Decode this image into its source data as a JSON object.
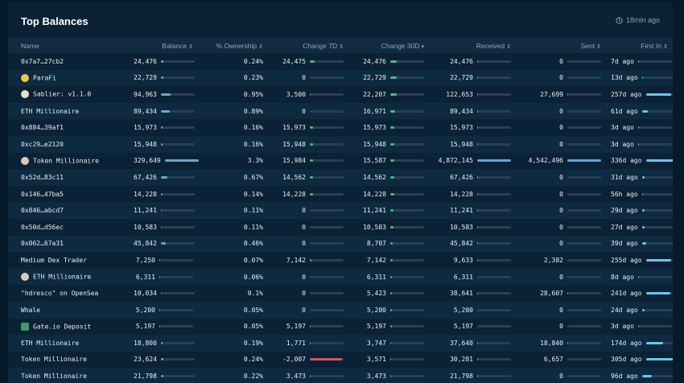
{
  "header": {
    "title": "Top Balances",
    "updated": "18min ago"
  },
  "columns": [
    {
      "key": "name",
      "label": "Name",
      "sort": ""
    },
    {
      "key": "balance",
      "label": "Balance",
      "sort": "⇕"
    },
    {
      "key": "ownership",
      "label": "% Ownership",
      "sort": "⇕"
    },
    {
      "key": "change7d",
      "label": "Change 7D",
      "sort": "⇕"
    },
    {
      "key": "change30d",
      "label": "Change 30D",
      "sort": "▾"
    },
    {
      "key": "received",
      "label": "Received",
      "sort": "⇕"
    },
    {
      "key": "sent",
      "label": "Sent",
      "sort": "⇕"
    },
    {
      "key": "first_in",
      "label": "First In",
      "sort": "⇕"
    }
  ],
  "colors": {
    "balance": "#6aa6c9",
    "change_pos": "#3fbf7f",
    "change_neg": "#d9535f",
    "received": "#5aa8e0",
    "sent": "#5aa8e0",
    "first_in": "#6cc4ee"
  },
  "rows": [
    {
      "name": "0x7a7…27cb2",
      "icon": "",
      "balance": "24,476",
      "balance_frac": 0.074,
      "ownership": "0.24%",
      "change7d": "24,475",
      "c7_frac": 0.15,
      "c7_sign": "pos",
      "change30d": "24,476",
      "c30_frac": 0.2,
      "c30_sign": "pos",
      "received": "24,476",
      "recv_frac": 0.005,
      "sent": "0",
      "sent_frac": 0,
      "first_in": "7d ago",
      "first_frac": 0.02
    },
    {
      "name": "ParaFi",
      "icon": "parafi",
      "balance": "22,729",
      "balance_frac": 0.069,
      "ownership": "0.23%",
      "change7d": "0",
      "c7_frac": 0,
      "c7_sign": "pos",
      "change30d": "22,729",
      "c30_frac": 0.19,
      "c30_sign": "pos",
      "received": "22,729",
      "recv_frac": 0.005,
      "sent": "0",
      "sent_frac": 0,
      "first_in": "13d ago",
      "first_frac": 0.04
    },
    {
      "name": "Sablier: v1.1.0",
      "icon": "sablier",
      "balance": "94,963",
      "balance_frac": 0.29,
      "ownership": "0.95%",
      "change7d": "3,500",
      "c7_frac": 0.02,
      "c7_sign": "pos",
      "change30d": "22,207",
      "c30_frac": 0.18,
      "c30_sign": "pos",
      "received": "122,653",
      "recv_frac": 0.025,
      "sent": "27,699",
      "sent_frac": 0.006,
      "first_in": "257d ago",
      "first_frac": 0.76
    },
    {
      "name": "ETH Millionaire",
      "icon": "",
      "balance": "89,434",
      "balance_frac": 0.27,
      "ownership": "0.89%",
      "change7d": "0",
      "c7_frac": 0,
      "c7_sign": "pos",
      "change30d": "16,971",
      "c30_frac": 0.14,
      "c30_sign": "pos",
      "received": "89,434",
      "recv_frac": 0.018,
      "sent": "0",
      "sent_frac": 0,
      "first_in": "61d ago",
      "first_frac": 0.18
    },
    {
      "name": "0x884…39af1",
      "icon": "",
      "balance": "15,973",
      "balance_frac": 0.048,
      "ownership": "0.16%",
      "change7d": "15,973",
      "c7_frac": 0.1,
      "c7_sign": "pos",
      "change30d": "15,973",
      "c30_frac": 0.13,
      "c30_sign": "pos",
      "received": "15,973",
      "recv_frac": 0.003,
      "sent": "0",
      "sent_frac": 0,
      "first_in": "3d ago",
      "first_frac": 0.01
    },
    {
      "name": "0xc29…e2120",
      "icon": "",
      "balance": "15,948",
      "balance_frac": 0.048,
      "ownership": "0.16%",
      "change7d": "15,948",
      "c7_frac": 0.1,
      "c7_sign": "pos",
      "change30d": "15,948",
      "c30_frac": 0.13,
      "c30_sign": "pos",
      "received": "15,948",
      "recv_frac": 0.003,
      "sent": "0",
      "sent_frac": 0,
      "first_in": "3d ago",
      "first_frac": 0.01
    },
    {
      "name": "Token Millionaire",
      "icon": "token",
      "balance": "329,649",
      "balance_frac": 1.0,
      "ownership": "3.3%",
      "change7d": "15,984",
      "c7_frac": 0.1,
      "c7_sign": "pos",
      "change30d": "15,587",
      "c30_frac": 0.13,
      "c30_sign": "pos",
      "received": "4,872,145",
      "recv_frac": 1.0,
      "sent": "4,542,496",
      "sent_frac": 1.0,
      "first_in": "336d ago",
      "first_frac": 1.0
    },
    {
      "name": "0x52d…83c11",
      "icon": "",
      "balance": "67,426",
      "balance_frac": 0.2,
      "ownership": "0.67%",
      "change7d": "14,562",
      "c7_frac": 0.09,
      "c7_sign": "pos",
      "change30d": "14,562",
      "c30_frac": 0.12,
      "c30_sign": "pos",
      "received": "67,426",
      "recv_frac": 0.014,
      "sent": "0",
      "sent_frac": 0,
      "first_in": "31d ago",
      "first_frac": 0.09
    },
    {
      "name": "0x146…47ba5",
      "icon": "",
      "balance": "14,228",
      "balance_frac": 0.043,
      "ownership": "0.14%",
      "change7d": "14,228",
      "c7_frac": 0.09,
      "c7_sign": "pos",
      "change30d": "14,228",
      "c30_frac": 0.12,
      "c30_sign": "pos",
      "received": "14,228",
      "recv_frac": 0.003,
      "sent": "0",
      "sent_frac": 0,
      "first_in": "56h ago",
      "first_frac": 0.01
    },
    {
      "name": "0x846…abcd7",
      "icon": "",
      "balance": "11,241",
      "balance_frac": 0.034,
      "ownership": "0.11%",
      "change7d": "0",
      "c7_frac": 0,
      "c7_sign": "pos",
      "change30d": "11,241",
      "c30_frac": 0.09,
      "c30_sign": "pos",
      "received": "11,241",
      "recv_frac": 0.002,
      "sent": "0",
      "sent_frac": 0,
      "first_in": "29d ago",
      "first_frac": 0.09
    },
    {
      "name": "0x50d…d56ec",
      "icon": "",
      "balance": "10,583",
      "balance_frac": 0.032,
      "ownership": "0.11%",
      "change7d": "0",
      "c7_frac": 0,
      "c7_sign": "pos",
      "change30d": "10,583",
      "c30_frac": 0.09,
      "c30_sign": "pos",
      "received": "10,583",
      "recv_frac": 0.002,
      "sent": "0",
      "sent_frac": 0,
      "first_in": "27d ago",
      "first_frac": 0.08
    },
    {
      "name": "0x062…67a31",
      "icon": "",
      "balance": "45,842",
      "balance_frac": 0.14,
      "ownership": "0.46%",
      "change7d": "0",
      "c7_frac": 0,
      "c7_sign": "pos",
      "change30d": "8,707",
      "c30_frac": 0.07,
      "c30_sign": "pos",
      "received": "45,842",
      "recv_frac": 0.009,
      "sent": "0",
      "sent_frac": 0,
      "first_in": "39d ago",
      "first_frac": 0.12
    },
    {
      "name": "Medium Dex Trader",
      "icon": "",
      "balance": "7,250",
      "balance_frac": 0.022,
      "ownership": "0.07%",
      "change7d": "7,142",
      "c7_frac": 0.05,
      "c7_sign": "pos",
      "change30d": "7,142",
      "c30_frac": 0.06,
      "c30_sign": "pos",
      "received": "9,633",
      "recv_frac": 0.002,
      "sent": "2,382",
      "sent_frac": 0.001,
      "first_in": "255d ago",
      "first_frac": 0.76
    },
    {
      "name": "ETH Millionaire",
      "icon": "token",
      "balance": "6,311",
      "balance_frac": 0.019,
      "ownership": "0.06%",
      "change7d": "0",
      "c7_frac": 0,
      "c7_sign": "pos",
      "change30d": "6,311",
      "c30_frac": 0.05,
      "c30_sign": "pos",
      "received": "6,311",
      "recv_frac": 0.001,
      "sent": "0",
      "sent_frac": 0,
      "first_in": "8d ago",
      "first_frac": 0.02
    },
    {
      "name": "\"hdresco\" on OpenSea",
      "icon": "",
      "balance": "10,034",
      "balance_frac": 0.03,
      "ownership": "0.1%",
      "change7d": "0",
      "c7_frac": 0,
      "c7_sign": "pos",
      "change30d": "5,423",
      "c30_frac": 0.05,
      "c30_sign": "pos",
      "received": "38,641",
      "recv_frac": 0.008,
      "sent": "28,607",
      "sent_frac": 0.006,
      "first_in": "241d ago",
      "first_frac": 0.72
    },
    {
      "name": "Whale",
      "icon": "",
      "balance": "5,200",
      "balance_frac": 0.016,
      "ownership": "0.05%",
      "change7d": "0",
      "c7_frac": 0,
      "c7_sign": "pos",
      "change30d": "5,200",
      "c30_frac": 0.04,
      "c30_sign": "pos",
      "received": "5,200",
      "recv_frac": 0.001,
      "sent": "0",
      "sent_frac": 0,
      "first_in": "24d ago",
      "first_frac": 0.07
    },
    {
      "name": "Gate.io Deposit",
      "icon": "gate",
      "balance": "5,197",
      "balance_frac": 0.016,
      "ownership": "0.05%",
      "change7d": "5,197",
      "c7_frac": 0.03,
      "c7_sign": "pos",
      "change30d": "5,197",
      "c30_frac": 0.04,
      "c30_sign": "pos",
      "received": "5,197",
      "recv_frac": 0.001,
      "sent": "0",
      "sent_frac": 0,
      "first_in": "3d ago",
      "first_frac": 0.01
    },
    {
      "name": "ETH Millionaire",
      "icon": "",
      "balance": "18,800",
      "balance_frac": 0.057,
      "ownership": "0.19%",
      "change7d": "1,771",
      "c7_frac": 0.01,
      "c7_sign": "pos",
      "change30d": "3,747",
      "c30_frac": 0.03,
      "c30_sign": "pos",
      "received": "37,640",
      "recv_frac": 0.008,
      "sent": "18,840",
      "sent_frac": 0.004,
      "first_in": "174d ago",
      "first_frac": 0.52
    },
    {
      "name": "Token Millionaire",
      "icon": "",
      "balance": "23,624",
      "balance_frac": 0.072,
      "ownership": "0.24%",
      "change7d": "-2,007",
      "c7_frac": 0.95,
      "c7_sign": "neg",
      "change30d": "3,571",
      "c30_frac": 0.03,
      "c30_sign": "pos",
      "received": "30,281",
      "recv_frac": 0.006,
      "sent": "6,657",
      "sent_frac": 0.001,
      "first_in": "305d ago",
      "first_frac": 0.91
    },
    {
      "name": "Token Millionaire",
      "icon": "",
      "balance": "21,798",
      "balance_frac": 0.066,
      "ownership": "0.22%",
      "change7d": "3,473",
      "c7_frac": 0.02,
      "c7_sign": "pos",
      "change30d": "3,473",
      "c30_frac": 0.03,
      "c30_sign": "pos",
      "received": "21,798",
      "recv_frac": 0.004,
      "sent": "0",
      "sent_frac": 0,
      "first_in": "96d ago",
      "first_frac": 0.29
    }
  ]
}
